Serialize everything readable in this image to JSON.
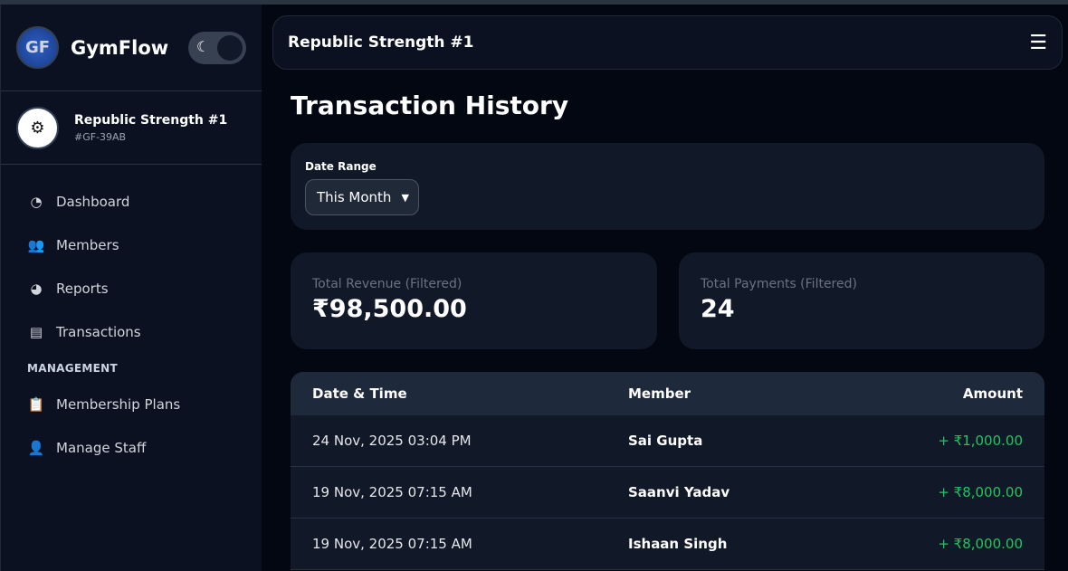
{
  "app": {
    "name": "GymFlow",
    "logo_text": "GF",
    "theme_icon": "moon-icon"
  },
  "gym": {
    "name": "Republic Strength #1",
    "id": "#GF-39AB"
  },
  "nav": {
    "items": [
      {
        "label": "Dashboard",
        "icon": "gauge-icon"
      },
      {
        "label": "Members",
        "icon": "users-icon"
      },
      {
        "label": "Reports",
        "icon": "pie-chart-icon"
      },
      {
        "label": "Transactions",
        "icon": "receipt-icon"
      }
    ],
    "section": "MANAGEMENT",
    "management": [
      {
        "label": "Membership Plans",
        "icon": "clipboard-list-icon"
      },
      {
        "label": "Manage Staff",
        "icon": "user-shield-icon"
      }
    ]
  },
  "header": {
    "title": "Republic Strength #1"
  },
  "page": {
    "title": "Transaction History"
  },
  "filter": {
    "label": "Date Range",
    "value": "This Month"
  },
  "stats": [
    {
      "label": "Total Revenue (Filtered)",
      "value": "₹98,500.00"
    },
    {
      "label": "Total Payments (Filtered)",
      "value": "24"
    }
  ],
  "table": {
    "columns": [
      "Date & Time",
      "Member",
      "Amount"
    ],
    "rows": [
      {
        "date": "24 Nov, 2025 03:04 PM",
        "member": "Sai Gupta",
        "amount": "+ ₹1,000.00"
      },
      {
        "date": "19 Nov, 2025 07:15 AM",
        "member": "Saanvi Yadav",
        "amount": "+ ₹8,000.00"
      },
      {
        "date": "19 Nov, 2025 07:15 AM",
        "member": "Ishaan Singh",
        "amount": "+ ₹8,000.00"
      }
    ]
  },
  "colors": {
    "positive": "#22c55e",
    "background": "#030712",
    "card": "#111827"
  }
}
